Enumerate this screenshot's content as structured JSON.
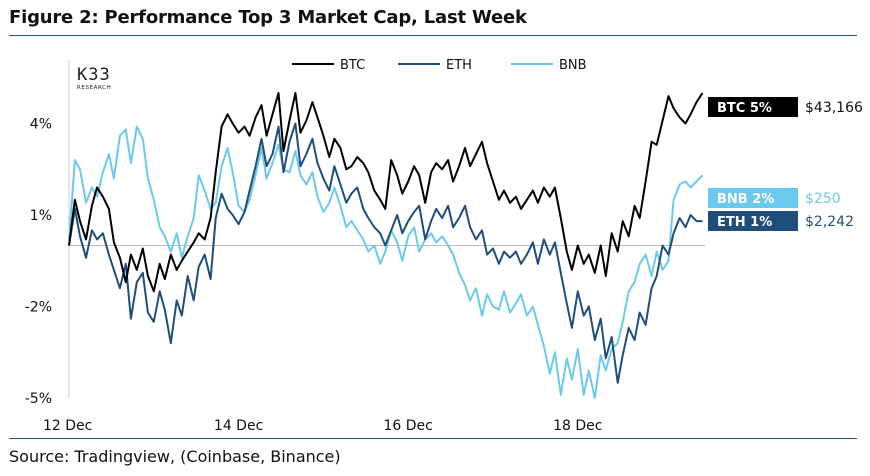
{
  "header": {
    "title": "Figure 2: Performance Top 3 Market Cap, Last Week"
  },
  "footer": {
    "source": "Source: Tradingview, (Coinbase, Binance)"
  },
  "logo": {
    "main": "K33",
    "sub": "RESEARCH"
  },
  "colors": {
    "BTC": "#000000",
    "ETH": "#1f4e7a",
    "BNB": "#6cc9ee",
    "rule": "#1f5c86",
    "zero_line": "#bdbdbd",
    "axis": "#cccccc"
  },
  "chart_data": {
    "type": "line",
    "title": "Performance Top 3 Market Cap, Last Week",
    "xlabel": "",
    "ylabel": "",
    "ylim": [
      -5,
      5
    ],
    "xlim": [
      0,
      7.5
    ],
    "x_ticks": [
      {
        "x": 0,
        "label": "12 Dec"
      },
      {
        "x": 2,
        "label": "14 Dec"
      },
      {
        "x": 4,
        "label": "16 Dec"
      },
      {
        "x": 6,
        "label": "18 Dec"
      }
    ],
    "y_ticks": [
      {
        "y": 4,
        "label": "4%"
      },
      {
        "y": 1,
        "label": "1%"
      },
      {
        "y": -2,
        "label": "-2%"
      },
      {
        "y": -5,
        "label": "-5%"
      }
    ],
    "legend": [
      "BTC",
      "ETH",
      "BNB"
    ],
    "legend_position": "top-center",
    "grid": false,
    "series": [
      {
        "name": "BTC",
        "tag": "BTC 5%",
        "price": "$43,166",
        "x": [
          0,
          0.07,
          0.13,
          0.2,
          0.27,
          0.33,
          0.4,
          0.47,
          0.53,
          0.6,
          0.67,
          0.73,
          0.8,
          0.87,
          0.93,
          1.0,
          1.07,
          1.13,
          1.2,
          1.27,
          1.33,
          1.4,
          1.47,
          1.53,
          1.6,
          1.67,
          1.73,
          1.8,
          1.87,
          1.93,
          2.0,
          2.07,
          2.13,
          2.2,
          2.27,
          2.33,
          2.4,
          2.47,
          2.53,
          2.6,
          2.67,
          2.73,
          2.8,
          2.87,
          2.93,
          3.0,
          3.07,
          3.13,
          3.2,
          3.27,
          3.33,
          3.4,
          3.47,
          3.53,
          3.6,
          3.67,
          3.73,
          3.8,
          3.87,
          3.93,
          4.0,
          4.07,
          4.13,
          4.2,
          4.27,
          4.33,
          4.4,
          4.47,
          4.53,
          4.6,
          4.67,
          4.73,
          4.8,
          4.87,
          4.93,
          5.0,
          5.07,
          5.13,
          5.2,
          5.27,
          5.33,
          5.4,
          5.47,
          5.53,
          5.6,
          5.67,
          5.73,
          5.8,
          5.87,
          5.93,
          6.0,
          6.07,
          6.13,
          6.2,
          6.27,
          6.33,
          6.4,
          6.47,
          6.53,
          6.6,
          6.67,
          6.73,
          6.8,
          6.87,
          6.93,
          7.0,
          7.07,
          7.13,
          7.2,
          7.27,
          7.33,
          7.4,
          7.47
        ],
        "values": [
          0.0,
          1.5,
          0.8,
          0.2,
          1.3,
          1.9,
          1.6,
          1.2,
          0.1,
          -0.4,
          -1.2,
          -0.3,
          -0.8,
          -0.1,
          -1.0,
          -1.5,
          -0.6,
          -1.1,
          -0.3,
          -0.8,
          -0.5,
          -0.2,
          0.1,
          0.4,
          0.2,
          0.9,
          2.4,
          3.9,
          4.3,
          4.0,
          3.7,
          3.9,
          3.6,
          4.2,
          4.6,
          3.6,
          4.3,
          5.0,
          3.1,
          4.1,
          5.0,
          3.7,
          4.1,
          4.7,
          4.2,
          3.6,
          2.9,
          3.5,
          3.2,
          2.5,
          2.6,
          2.9,
          2.7,
          2.4,
          1.8,
          1.5,
          1.2,
          2.8,
          2.3,
          1.7,
          2.1,
          2.6,
          2.3,
          1.4,
          2.4,
          2.7,
          2.5,
          2.8,
          2.1,
          2.6,
          3.2,
          2.6,
          3.0,
          3.4,
          2.7,
          2.1,
          1.5,
          1.8,
          1.4,
          1.6,
          1.2,
          1.5,
          1.8,
          1.4,
          1.9,
          1.6,
          1.9,
          0.9,
          -0.2,
          -0.8,
          0.0,
          -0.6,
          -0.3,
          -0.9,
          0.0,
          -1.0,
          0.4,
          -0.2,
          0.8,
          0.3,
          1.3,
          0.9,
          2.1,
          3.4,
          3.3,
          4.1,
          4.9,
          4.5,
          4.2,
          4.0,
          4.3,
          4.7,
          5.0
        ]
      },
      {
        "name": "ETH",
        "tag": "ETH 1%",
        "price": "$2,242",
        "x": [
          0,
          0.07,
          0.13,
          0.2,
          0.27,
          0.33,
          0.4,
          0.47,
          0.53,
          0.6,
          0.67,
          0.73,
          0.8,
          0.87,
          0.93,
          1.0,
          1.07,
          1.13,
          1.2,
          1.27,
          1.33,
          1.4,
          1.47,
          1.53,
          1.6,
          1.67,
          1.73,
          1.8,
          1.87,
          1.93,
          2.0,
          2.07,
          2.13,
          2.2,
          2.27,
          2.33,
          2.4,
          2.47,
          2.53,
          2.6,
          2.67,
          2.73,
          2.8,
          2.87,
          2.93,
          3.0,
          3.07,
          3.13,
          3.2,
          3.27,
          3.33,
          3.4,
          3.47,
          3.53,
          3.6,
          3.67,
          3.73,
          3.8,
          3.87,
          3.93,
          4.0,
          4.07,
          4.13,
          4.2,
          4.27,
          4.33,
          4.4,
          4.47,
          4.53,
          4.6,
          4.67,
          4.73,
          4.8,
          4.87,
          4.93,
          5.0,
          5.07,
          5.13,
          5.2,
          5.27,
          5.33,
          5.4,
          5.47,
          5.53,
          5.6,
          5.67,
          5.73,
          5.8,
          5.87,
          5.93,
          6.0,
          6.07,
          6.13,
          6.2,
          6.27,
          6.33,
          6.4,
          6.47,
          6.53,
          6.6,
          6.67,
          6.73,
          6.8,
          6.87,
          6.93,
          7.0,
          7.07,
          7.13,
          7.2,
          7.27,
          7.33,
          7.4,
          7.47
        ],
        "values": [
          0.0,
          1.2,
          0.3,
          -0.4,
          0.5,
          0.2,
          0.4,
          -0.3,
          -0.8,
          -1.4,
          -0.6,
          -2.4,
          -1.2,
          -0.9,
          -2.2,
          -2.5,
          -1.5,
          -2.1,
          -3.2,
          -1.8,
          -2.3,
          -1.0,
          -1.8,
          -0.7,
          -0.3,
          -1.1,
          0.9,
          1.7,
          1.2,
          1.0,
          0.7,
          1.1,
          1.8,
          2.6,
          3.5,
          2.6,
          3.0,
          3.9,
          2.4,
          3.4,
          4.0,
          2.6,
          3.0,
          3.5,
          2.7,
          2.2,
          1.8,
          2.6,
          2.0,
          1.4,
          1.7,
          1.9,
          1.2,
          0.9,
          0.6,
          0.4,
          0.0,
          0.5,
          1.0,
          0.4,
          0.8,
          1.1,
          1.3,
          0.2,
          0.8,
          1.2,
          0.9,
          1.3,
          0.6,
          0.9,
          1.3,
          0.6,
          0.2,
          0.5,
          -0.3,
          -0.1,
          -0.6,
          -0.2,
          -0.4,
          -0.2,
          -0.6,
          -0.3,
          0.1,
          -0.6,
          0.2,
          -0.3,
          0.1,
          -0.9,
          -1.9,
          -2.7,
          -1.5,
          -2.3,
          -2.0,
          -3.1,
          -2.4,
          -3.7,
          -3.0,
          -4.5,
          -3.6,
          -2.7,
          -3.1,
          -2.2,
          -2.6,
          -1.4,
          -1.0,
          0.0,
          -0.3,
          0.4,
          0.9,
          0.6,
          1.0,
          0.8,
          0.8
        ]
      },
      {
        "name": "BNB",
        "tag": "BNB 2%",
        "price": "$250",
        "x": [
          0,
          0.07,
          0.13,
          0.2,
          0.27,
          0.33,
          0.4,
          0.47,
          0.53,
          0.6,
          0.67,
          0.73,
          0.8,
          0.87,
          0.93,
          1.0,
          1.07,
          1.13,
          1.2,
          1.27,
          1.33,
          1.4,
          1.47,
          1.53,
          1.6,
          1.67,
          1.73,
          1.8,
          1.87,
          1.93,
          2.0,
          2.07,
          2.13,
          2.2,
          2.27,
          2.33,
          2.4,
          2.47,
          2.53,
          2.6,
          2.67,
          2.73,
          2.8,
          2.87,
          2.93,
          3.0,
          3.07,
          3.13,
          3.2,
          3.27,
          3.33,
          3.4,
          3.47,
          3.53,
          3.6,
          3.67,
          3.73,
          3.8,
          3.87,
          3.93,
          4.0,
          4.07,
          4.13,
          4.2,
          4.27,
          4.33,
          4.4,
          4.47,
          4.53,
          4.6,
          4.67,
          4.73,
          4.8,
          4.87,
          4.93,
          5.0,
          5.07,
          5.13,
          5.2,
          5.27,
          5.33,
          5.4,
          5.47,
          5.53,
          5.6,
          5.67,
          5.73,
          5.8,
          5.87,
          5.93,
          6.0,
          6.07,
          6.13,
          6.2,
          6.27,
          6.33,
          6.4,
          6.47,
          6.53,
          6.6,
          6.67,
          6.73,
          6.8,
          6.87,
          6.93,
          7.0,
          7.07,
          7.13,
          7.2,
          7.27,
          7.33,
          7.4,
          7.47
        ],
        "values": [
          0.2,
          2.8,
          2.5,
          1.4,
          1.9,
          1.6,
          2.4,
          3.0,
          2.2,
          3.6,
          3.8,
          2.7,
          3.9,
          3.5,
          2.2,
          1.5,
          0.6,
          0.3,
          -0.2,
          0.4,
          -0.4,
          0.3,
          0.9,
          2.3,
          1.8,
          1.2,
          1.4,
          2.6,
          3.2,
          2.4,
          1.3,
          1.1,
          1.5,
          2.3,
          3.2,
          2.2,
          2.7,
          3.3,
          2.5,
          2.4,
          3.1,
          2.3,
          2.0,
          2.4,
          1.6,
          1.1,
          1.4,
          1.9,
          1.3,
          0.6,
          0.8,
          0.5,
          0.2,
          -0.2,
          0.0,
          -0.6,
          -0.2,
          0.5,
          0.1,
          -0.5,
          0.3,
          0.6,
          -0.2,
          0.2,
          0.4,
          0.1,
          0.3,
          0.0,
          -0.3,
          -0.9,
          -1.3,
          -1.8,
          -1.4,
          -2.3,
          -1.6,
          -2.0,
          -2.1,
          -1.5,
          -2.2,
          -1.9,
          -1.6,
          -2.3,
          -2.0,
          -2.6,
          -3.3,
          -4.2,
          -3.5,
          -4.9,
          -3.7,
          -4.4,
          -3.4,
          -4.9,
          -4.1,
          -5.0,
          -3.6,
          -4.1,
          -3.4,
          -3.2,
          -2.5,
          -1.5,
          -1.2,
          -0.6,
          -0.3,
          -1.0,
          -0.2,
          -0.8,
          -0.5,
          1.5,
          2.0,
          2.1,
          1.9,
          2.1,
          2.3
        ]
      }
    ]
  }
}
